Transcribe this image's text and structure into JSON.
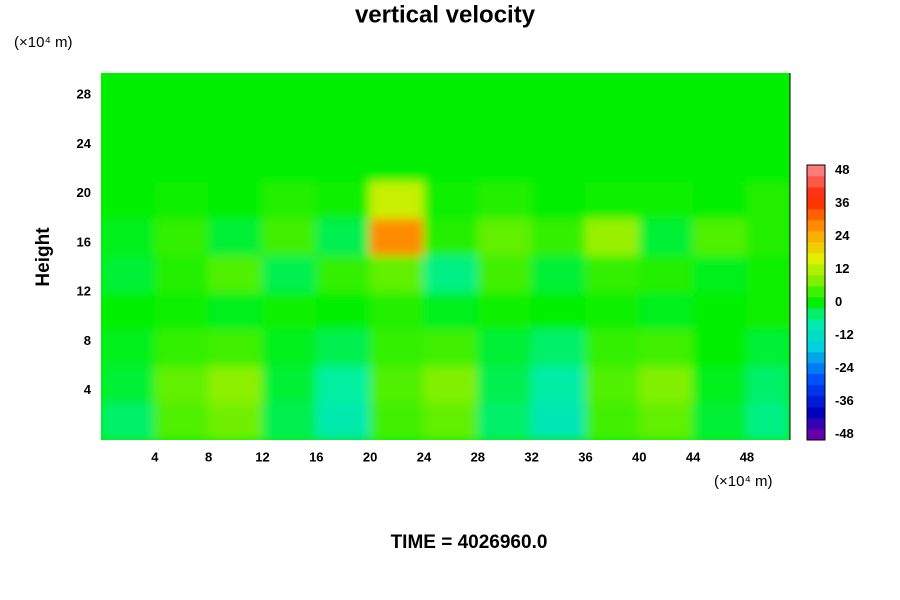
{
  "chart_data": {
    "type": "heatmap",
    "title": "vertical velocity",
    "y_label": "Height",
    "x_unit": "(×10⁴ m)",
    "y_unit": "(×10⁴ m)",
    "footer": "TIME = 4026960.0",
    "x_edges": [
      0,
      4,
      8,
      12,
      16,
      20,
      24,
      28,
      32,
      36,
      40,
      44,
      48,
      51.2
    ],
    "y_edges": [
      0,
      3,
      6,
      9,
      12,
      15,
      18,
      21,
      24,
      29.8
    ],
    "z": [
      [
        -4,
        5,
        7,
        -3,
        -8,
        4,
        6,
        -4,
        -9,
        4,
        6,
        -2,
        -5
      ],
      [
        -2,
        6,
        9,
        -2,
        -6,
        5,
        8,
        -3,
        -7,
        5,
        8,
        -1,
        -4
      ],
      [
        -1,
        3,
        4,
        -1,
        -3,
        3,
        4,
        -2,
        -4,
        3,
        4,
        0,
        -2
      ],
      [
        0,
        1,
        -1,
        1,
        0,
        2,
        -1,
        1,
        0,
        1,
        -1,
        0,
        1
      ],
      [
        -2,
        2,
        5,
        -3,
        3,
        6,
        -5,
        4,
        -2,
        3,
        2,
        -1,
        1
      ],
      [
        -1,
        3,
        -2,
        4,
        -3,
        28,
        2,
        6,
        3,
        10,
        -2,
        5,
        2
      ],
      [
        0,
        1,
        0,
        2,
        1,
        14,
        1,
        2,
        0,
        1,
        1,
        0,
        2
      ],
      [
        0,
        0,
        0,
        0,
        0,
        0,
        0,
        0,
        0,
        0,
        0,
        0,
        0
      ],
      [
        0,
        0,
        0,
        0,
        0,
        0,
        0,
        0,
        0,
        0,
        0,
        0,
        0
      ]
    ],
    "xlim": [
      0,
      51.2
    ],
    "ylim": [
      0,
      29.8
    ],
    "xticks": [
      4,
      8,
      12,
      16,
      20,
      24,
      28,
      32,
      36,
      40,
      44,
      48
    ],
    "yticks": [
      4,
      8,
      12,
      16,
      20,
      24,
      28
    ],
    "clim": [
      -50,
      50
    ],
    "cstep": 4,
    "cticks": [
      -48,
      -36,
      -24,
      -12,
      0,
      12,
      24,
      36,
      48
    ],
    "colormap": [
      [
        -50,
        "#8000a0"
      ],
      [
        -40,
        "#0000c0"
      ],
      [
        -28,
        "#0050ff"
      ],
      [
        -16,
        "#00d0e0"
      ],
      [
        -6,
        "#00f0a0"
      ],
      [
        0,
        "#00f000"
      ],
      [
        8,
        "#80f000"
      ],
      [
        16,
        "#e0f000"
      ],
      [
        26,
        "#ffa000"
      ],
      [
        38,
        "#ff2000"
      ],
      [
        50,
        "#ff9090"
      ]
    ]
  }
}
